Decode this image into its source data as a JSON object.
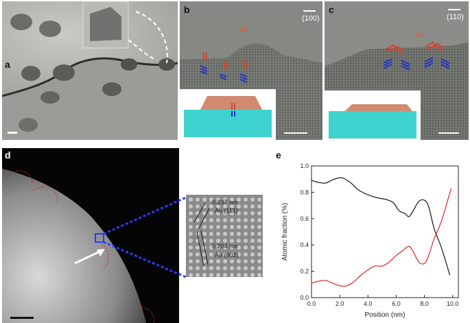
{
  "panels": {
    "a": {
      "label": "a"
    },
    "b": {
      "label": "b",
      "orientation": "(100)",
      "element": "Au"
    },
    "c": {
      "label": "c",
      "orientation": "(110)",
      "element": "Au"
    },
    "d": {
      "label": "d",
      "spacing1": "0.237 nm",
      "plane1": "Au (11̄1)",
      "spacing2": "0.204 nm",
      "plane2": "Au (002̄)"
    },
    "e": {
      "label": "e"
    }
  },
  "colors": {
    "gold": "#d5432c",
    "blue": "#2231c9",
    "red_line": "#e52020",
    "black_line": "#111111",
    "cyan": "#3fd3cf"
  },
  "chart_data": {
    "type": "line",
    "title": "",
    "xlabel": "Position (nm)",
    "ylabel": "Atomic fraction (%)",
    "xlim": [
      0,
      10.4
    ],
    "ylim": [
      0,
      1.0
    ],
    "xticks": [
      "0.0",
      "2.0",
      "4.0",
      "6.0",
      "8.0",
      "10.0"
    ],
    "yticks": [
      "0.0",
      "0.2",
      "0.4",
      "0.6",
      "0.8",
      "1.0"
    ],
    "series": [
      {
        "color": "#111111",
        "x": [
          0,
          0.5,
          1,
          1.5,
          2,
          2.3,
          2.8,
          3.3,
          3.8,
          4.3,
          4.8,
          5.3,
          5.8,
          6.2,
          6.6,
          6.9,
          7.2,
          7.6,
          8.0,
          8.3,
          8.7,
          9.2,
          9.8
        ],
        "y": [
          0.89,
          0.875,
          0.87,
          0.895,
          0.91,
          0.905,
          0.87,
          0.82,
          0.79,
          0.77,
          0.755,
          0.745,
          0.72,
          0.66,
          0.64,
          0.615,
          0.66,
          0.73,
          0.74,
          0.69,
          0.52,
          0.38,
          0.17
        ]
      },
      {
        "color": "#e52020",
        "x": [
          0,
          0.5,
          1,
          1.5,
          2,
          2.5,
          3,
          3.5,
          4,
          4.5,
          5,
          5.5,
          6,
          6.5,
          6.9,
          7.2,
          7.6,
          8.0,
          8.3,
          8.7,
          9.2,
          9.7,
          9.9
        ],
        "y": [
          0.11,
          0.125,
          0.13,
          0.11,
          0.09,
          0.09,
          0.12,
          0.17,
          0.21,
          0.24,
          0.24,
          0.27,
          0.32,
          0.36,
          0.39,
          0.35,
          0.27,
          0.26,
          0.32,
          0.45,
          0.58,
          0.76,
          0.83
        ]
      }
    ]
  }
}
